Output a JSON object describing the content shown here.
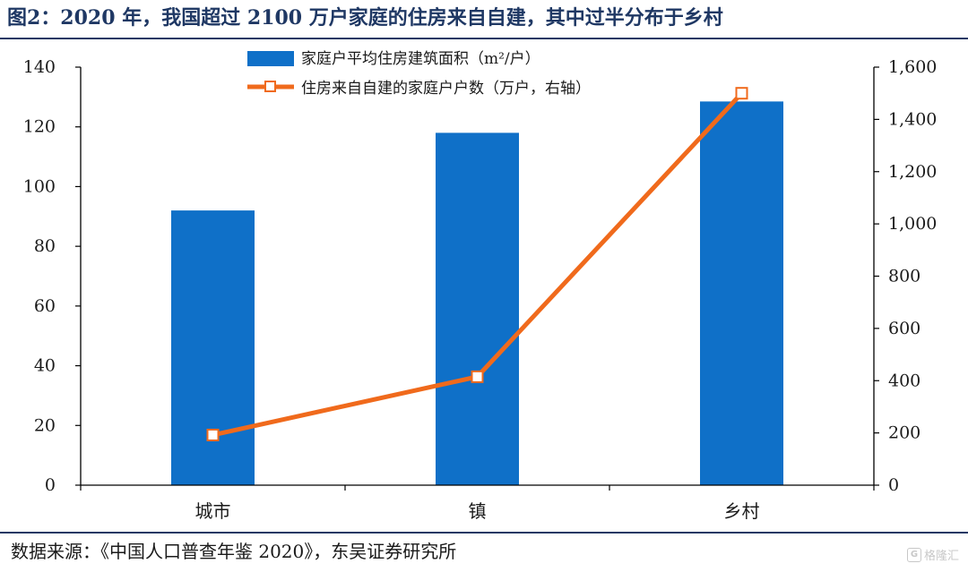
{
  "header": {
    "title": "图2：2020 年，我国超过 2100 万户家庭的住房来自自建，其中过半分布于乡村"
  },
  "footer": {
    "source": "数据来源：《中国人口普查年鉴 2020》，东吴证券研究所"
  },
  "watermark": {
    "logo": "G",
    "text": "格隆汇"
  },
  "colors": {
    "bar": "#0f70c8",
    "line": "#f06a1c",
    "axis": "#000000",
    "heading": "#1f3864"
  },
  "chart_data": {
    "type": "bar+line",
    "categories": [
      "城市",
      "镇",
      "乡村"
    ],
    "series": [
      {
        "name": "家庭户平均住房建筑面积（m²/户）",
        "type": "bar",
        "axis": "left",
        "values": [
          92,
          118,
          128.5
        ]
      },
      {
        "name": "住房来自自建的家庭户户数（万户，右轴）",
        "type": "line",
        "axis": "right",
        "marker": "square",
        "values": [
          192,
          415,
          1500
        ]
      }
    ],
    "y_left": {
      "min": 0,
      "max": 140,
      "ticks": [
        "0",
        "20",
        "40",
        "60",
        "80",
        "100",
        "120",
        "140"
      ]
    },
    "y_right": {
      "min": 0,
      "max": 1600,
      "ticks": [
        "0",
        "200",
        "400",
        "600",
        "800",
        "1,000",
        "1,200",
        "1,400",
        "1,600"
      ]
    },
    "legend": {
      "position": "top-center"
    },
    "grid": false
  }
}
